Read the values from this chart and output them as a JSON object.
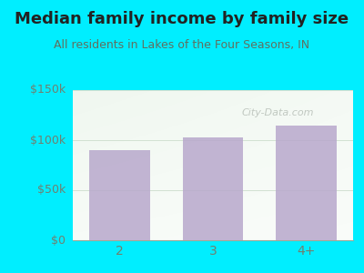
{
  "title": "Median family income by family size",
  "subtitle": "All residents in Lakes of the Four Seasons, IN",
  "categories": [
    "2",
    "3",
    "4+"
  ],
  "values": [
    90000,
    103000,
    115000
  ],
  "bar_color": "#b8a8cc",
  "bg_color": "#00eeff",
  "plot_bg_color_tl": "#dff0e0",
  "plot_bg_color_br": "#f8fff8",
  "ylim": [
    0,
    150000
  ],
  "yticks": [
    0,
    50000,
    100000,
    150000
  ],
  "ytick_labels": [
    "$0",
    "$50k",
    "$100k",
    "$150k"
  ],
  "title_fontsize": 13,
  "subtitle_fontsize": 9,
  "title_color": "#222222",
  "subtitle_color": "#607060",
  "watermark": "City-Data.com",
  "watermark_color": "#b0b8b0",
  "tick_color": "#708070",
  "grid_color": "#ccddcc"
}
